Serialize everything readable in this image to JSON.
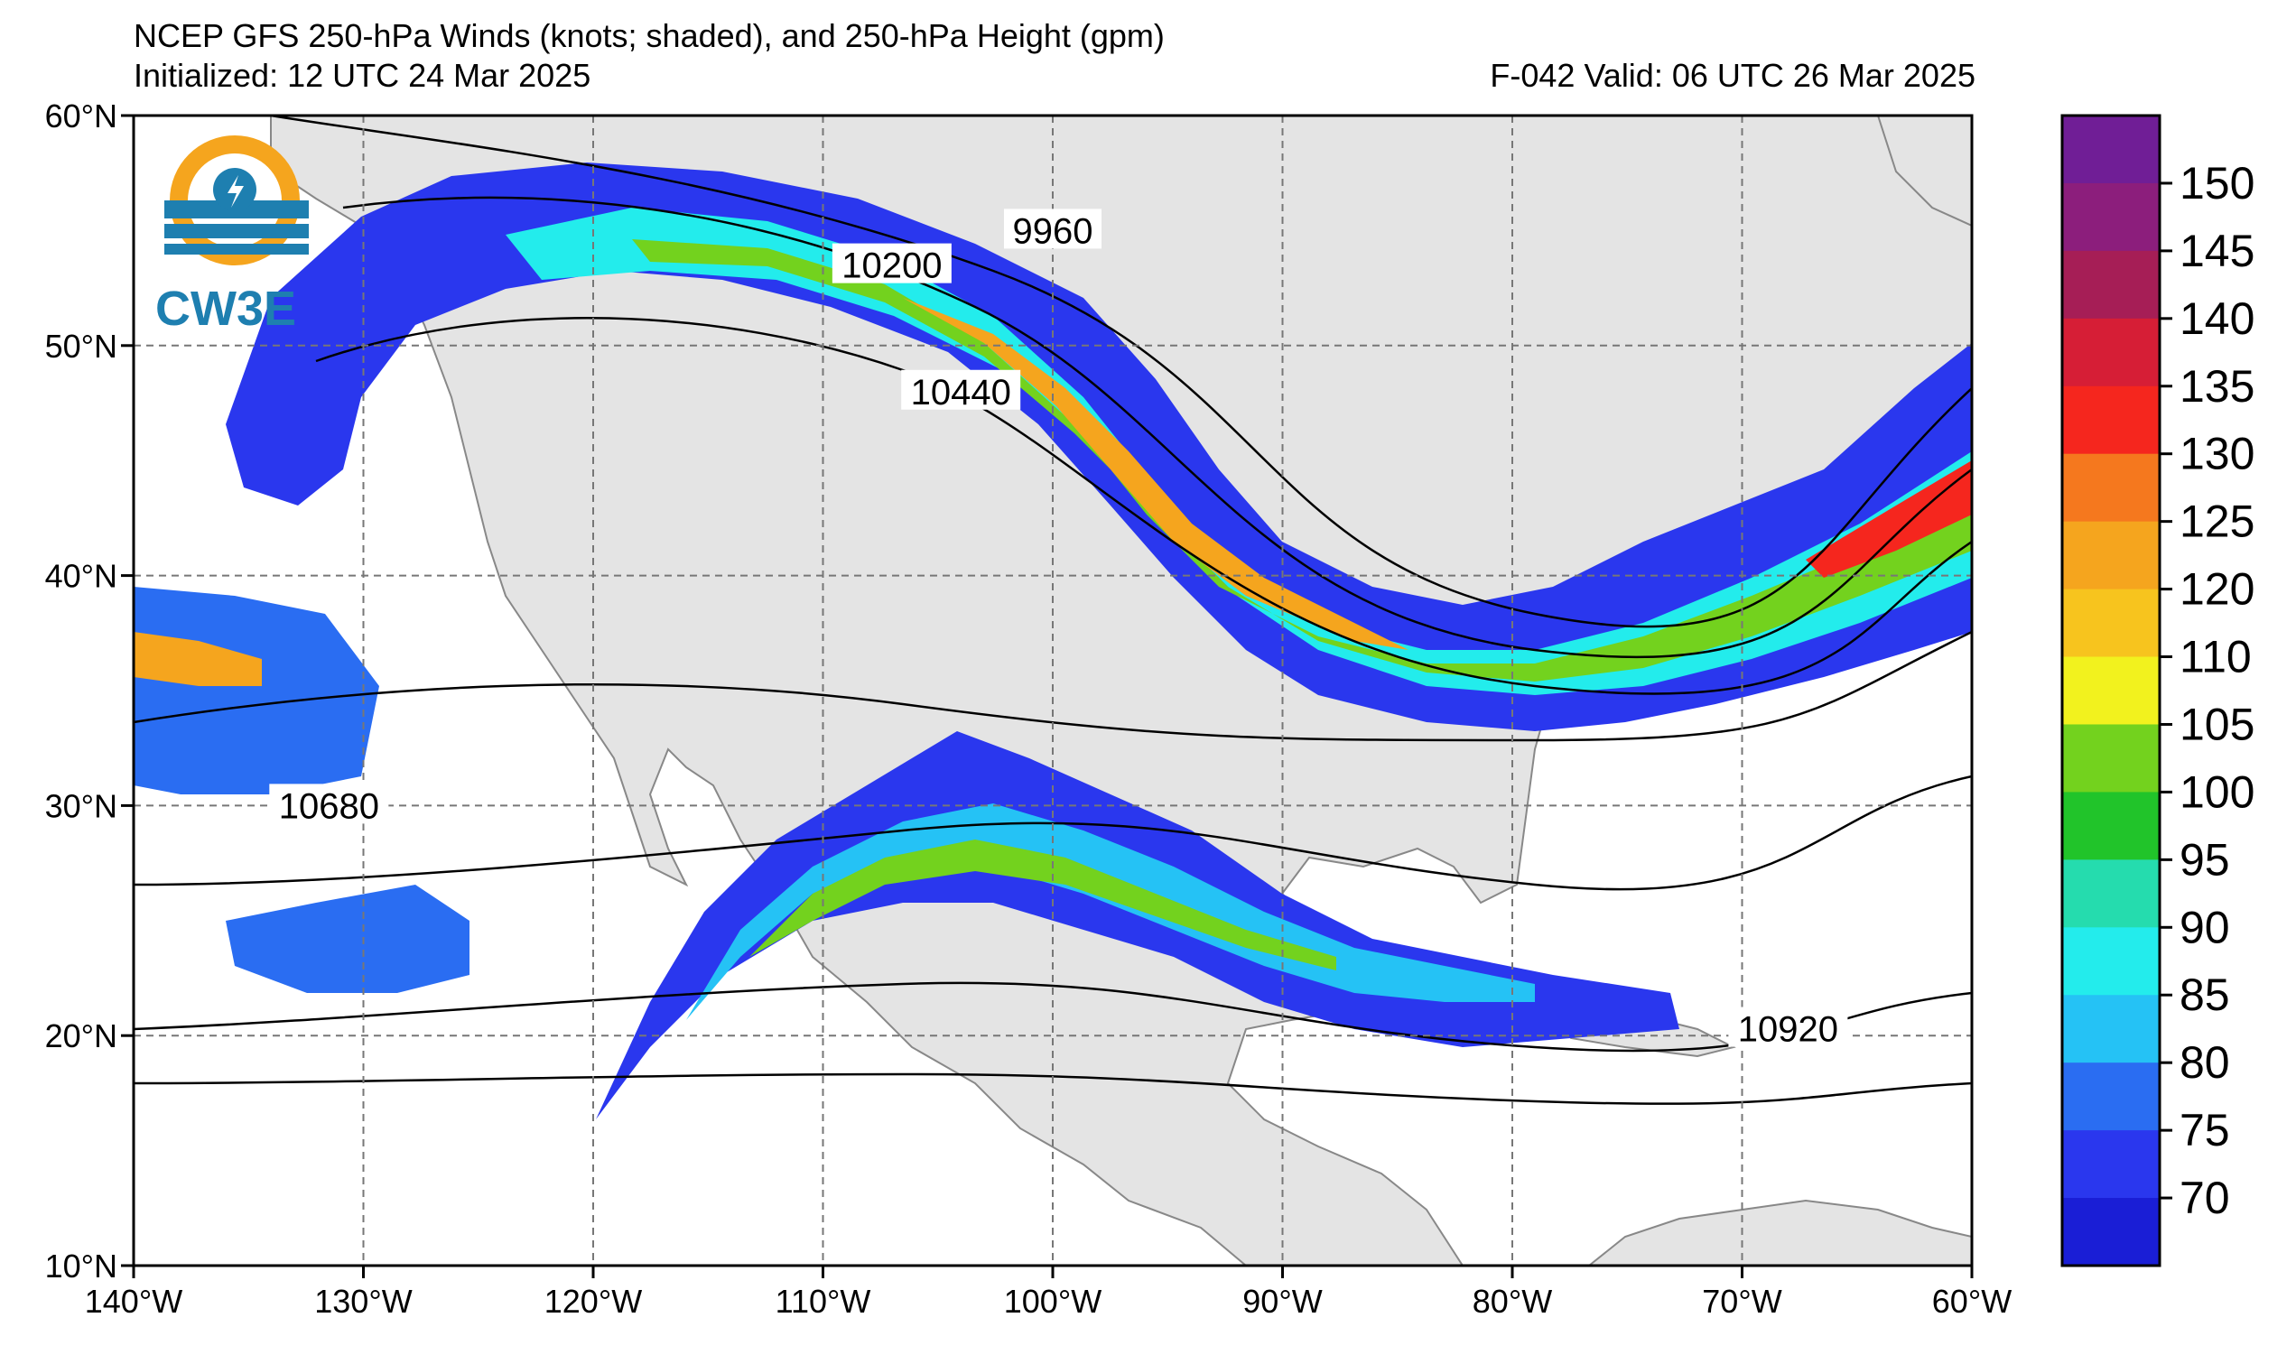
{
  "header": {
    "title": "NCEP GFS 250-hPa Winds (knots; shaded), and 250-hPa Height (gpm)",
    "initialized": "Initialized: 12 UTC 24 Mar 2025",
    "valid": "F-042  Valid: 06 UTC 26 Mar 2025"
  },
  "logo": {
    "text": "CW3E",
    "icon": "cw3e-logo-icon"
  },
  "map": {
    "lon_range": [
      -140,
      -60
    ],
    "lat_range": [
      10,
      60
    ],
    "grid": true,
    "lon_ticks": [
      "140°W",
      "130°W",
      "120°W",
      "110°W",
      "100°W",
      "90°W",
      "80°W",
      "70°W",
      "60°W"
    ],
    "lat_ticks": [
      "60°N",
      "50°N",
      "40°N",
      "30°N",
      "20°N",
      "10°N"
    ],
    "contour_labels": [
      {
        "text": "9960",
        "lon": -100,
        "lat": 55
      },
      {
        "text": "10200",
        "lon": -107,
        "lat": 53.5
      },
      {
        "text": "10440",
        "lon": -104,
        "lat": 48
      },
      {
        "text": "10680",
        "lon": -131.5,
        "lat": 30
      },
      {
        "text": "10920",
        "lon": -68,
        "lat": 20.3
      }
    ]
  },
  "colorbar": {
    "levels": [
      "70",
      "75",
      "80",
      "85",
      "90",
      "95",
      "100",
      "105",
      "110",
      "120",
      "125",
      "130",
      "135",
      "140",
      "145",
      "150"
    ],
    "colors": [
      "#1a1ed6",
      "#2a37ee",
      "#2a6df2",
      "#25c2f5",
      "#23ecec",
      "#25dcae",
      "#21c42a",
      "#73d21e",
      "#f2f21e",
      "#f7c41e",
      "#f5a51e",
      "#f5781e",
      "#f5261e",
      "#d61e36",
      "#a61e56",
      "#8c1e7c",
      "#701e96"
    ],
    "unit": "knots"
  }
}
